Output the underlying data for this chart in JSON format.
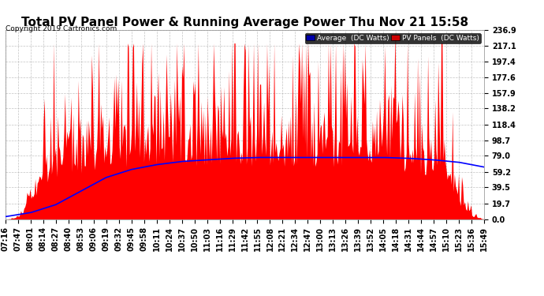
{
  "title": "Total PV Panel Power & Running Average Power Thu Nov 21 15:58",
  "copyright": "Copyright 2019 Cartronics.com",
  "legend_labels": [
    "Average  (DC Watts)",
    "PV Panels  (DC Watts)"
  ],
  "yticks": [
    0.0,
    19.7,
    39.5,
    59.2,
    79.0,
    98.7,
    118.4,
    138.2,
    157.9,
    177.6,
    197.4,
    217.1,
    236.9
  ],
  "ymax": 236.9,
  "ymin": 0.0,
  "xtick_labels": [
    "07:16",
    "07:47",
    "08:01",
    "08:14",
    "08:27",
    "08:40",
    "08:53",
    "09:06",
    "09:19",
    "09:32",
    "09:45",
    "09:58",
    "10:11",
    "10:24",
    "10:37",
    "10:50",
    "11:03",
    "11:16",
    "11:29",
    "11:42",
    "11:55",
    "12:08",
    "12:21",
    "12:34",
    "12:47",
    "13:00",
    "13:13",
    "13:26",
    "13:39",
    "13:52",
    "14:05",
    "14:18",
    "14:31",
    "14:44",
    "14:57",
    "15:10",
    "15:23",
    "15:36",
    "15:49"
  ],
  "avg_data_x": [
    0,
    2,
    4,
    6,
    8,
    10,
    12,
    14,
    16,
    18,
    20,
    22,
    24,
    26,
    28,
    30,
    32,
    34,
    36,
    38
  ],
  "avg_data_y": [
    3,
    8,
    18,
    35,
    52,
    62,
    68,
    72,
    74,
    76,
    77,
    77,
    77,
    77,
    77,
    77,
    76,
    74,
    71,
    65
  ],
  "bg_color": "#ffffff",
  "pv_color": "#ff0000",
  "avg_color": "#0000ff",
  "title_fontsize": 11,
  "tick_fontsize": 7,
  "legend_blue_bg": "#0000aa",
  "legend_red_bg": "#cc0000"
}
